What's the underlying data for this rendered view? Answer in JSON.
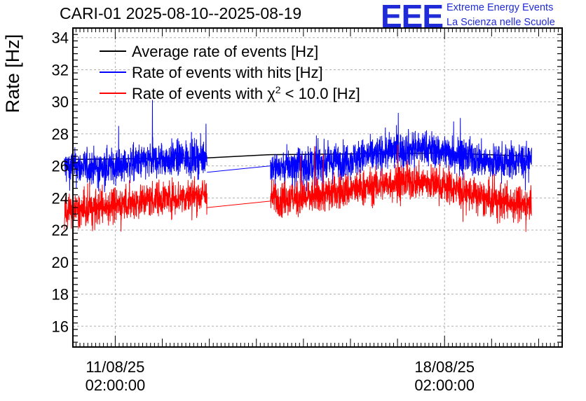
{
  "header": {
    "title": "CARI-01 2025-08-10--2025-08-19",
    "logo_letters": "EEE",
    "logo_line1": "Extreme Energy Events",
    "logo_line2": "La Scienza nelle Scuole"
  },
  "colors": {
    "brand": "#1f2bd6",
    "average": "#000000",
    "hits": "#0000ff",
    "chi2": "#ff0000",
    "grid": "#b0b0b0"
  },
  "chart_data": {
    "type": "line",
    "ylabel": "Rate [Hz]",
    "ylim": [
      14.7,
      34.6
    ],
    "yticks": [
      16,
      18,
      20,
      22,
      24,
      26,
      28,
      30,
      32,
      34
    ],
    "ytick_labels": [
      "16",
      "18",
      "20",
      "22",
      "24",
      "26",
      "28",
      "30",
      "32",
      "34"
    ],
    "x_unit": "days since 2025-08-10 02:00:00",
    "xlim": [
      -0.9,
      9.5
    ],
    "xticks": [
      {
        "x": 0,
        "label_date": "11/08/25",
        "label_time": "02:00:00"
      },
      {
        "x": 7,
        "label_date": "18/08/25",
        "label_time": "02:00:00"
      }
    ],
    "grid": true,
    "legend_position": "top-left",
    "series": [
      {
        "name": "Average rate of events [Hz]",
        "legend_label": "Average rate of events [Hz]",
        "color": "#000000",
        "noise": 0,
        "segments": [
          [
            [
              -1.08,
              26.4
            ],
            [
              1.95,
              26.5
            ],
            [
              3.3,
              26.7
            ],
            [
              7.0,
              26.8
            ],
            [
              8.85,
              26.6
            ]
          ]
        ]
      },
      {
        "name": "Rate of events with hits [Hz]",
        "legend_label": "Rate of events with hits [Hz]",
        "color": "#0000ff",
        "noise": 1.0,
        "segments": [
          [
            [
              -1.08,
              25.9
            ],
            [
              -0.5,
              25.9
            ],
            [
              0.0,
              26.0
            ],
            [
              0.5,
              26.2
            ],
            [
              1.0,
              26.4
            ],
            [
              1.5,
              26.5
            ],
            [
              1.95,
              26.5
            ]
          ],
          [
            [
              1.95,
              25.6
            ],
            [
              3.3,
              26.0
            ]
          ],
          [
            [
              3.3,
              25.9
            ],
            [
              4.0,
              26.0
            ],
            [
              5.0,
              26.4
            ],
            [
              6.0,
              27.0
            ],
            [
              6.5,
              27.1
            ],
            [
              7.0,
              26.9
            ],
            [
              8.0,
              26.2
            ],
            [
              8.85,
              26.4
            ]
          ]
        ]
      },
      {
        "name": "Rate of events with χ² < 10.0 [Hz]",
        "legend_label": "Rate of events with χ",
        "legend_sup": "2",
        "legend_rest": " < 10.0 [Hz]",
        "color": "#ff0000",
        "noise": 1.0,
        "segments": [
          [
            [
              -1.08,
              23.1
            ],
            [
              -0.5,
              23.3
            ],
            [
              0.0,
              23.6
            ],
            [
              0.5,
              23.8
            ],
            [
              1.0,
              24.0
            ],
            [
              1.5,
              24.1
            ],
            [
              1.95,
              24.2
            ]
          ],
          [
            [
              1.95,
              23.4
            ],
            [
              3.3,
              23.8
            ]
          ],
          [
            [
              3.3,
              24.0
            ],
            [
              4.0,
              24.0
            ],
            [
              5.0,
              24.5
            ],
            [
              6.0,
              25.0
            ],
            [
              6.5,
              25.0
            ],
            [
              7.0,
              24.8
            ],
            [
              8.0,
              23.8
            ],
            [
              8.85,
              23.6
            ]
          ]
        ]
      }
    ]
  }
}
